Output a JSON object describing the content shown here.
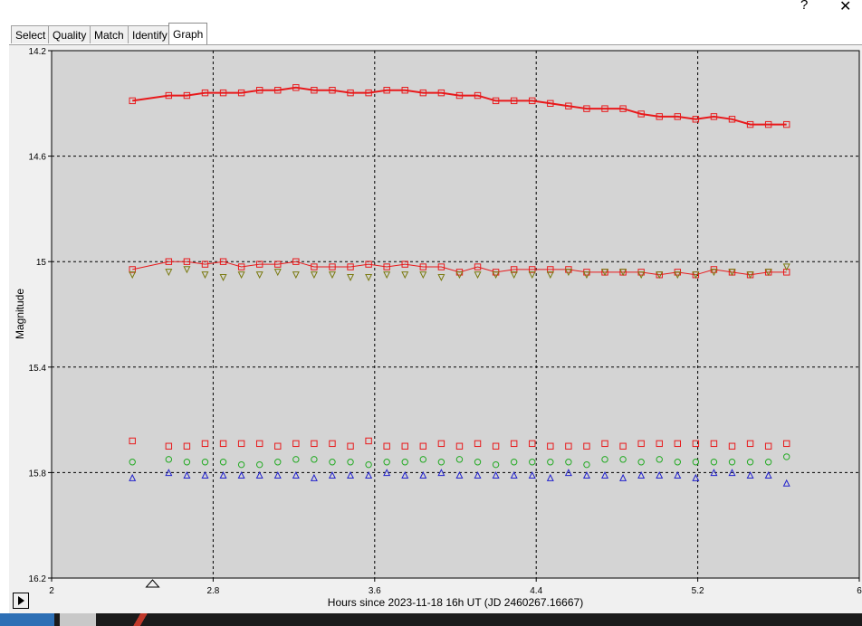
{
  "window": {
    "help_label": "?",
    "close_label": "✕"
  },
  "tabs": [
    {
      "label": "Select",
      "active": false
    },
    {
      "label": "Quality",
      "active": false
    },
    {
      "label": "Match",
      "active": false
    },
    {
      "label": "Identify",
      "active": false
    },
    {
      "label": "Graph",
      "active": true
    }
  ],
  "icons": {
    "play": "play-icon",
    "marker": "triangle-marker-icon"
  },
  "colors": {
    "plot_bg": "#d4d4d4",
    "red": "#e8191b",
    "green": "#22aa22",
    "blue": "#2222cc",
    "olive": "#7a7a10"
  },
  "chart_data": {
    "type": "scatter",
    "xlabel": "Hours since 2023-11-18 16h UT (JD 2460267.16667)",
    "ylabel": "Magnitude",
    "xlim": [
      2,
      6
    ],
    "ylim": [
      14.2,
      16.2
    ],
    "y_inverted": true,
    "x_ticks": [
      "2",
      "2.8",
      "3.6",
      "4.4",
      "5.2",
      "6"
    ],
    "y_ticks": [
      "14.2",
      "14.6",
      "15",
      "15.4",
      "15.8",
      "16.2"
    ],
    "grid": true,
    "x": [
      2.4,
      2.58,
      2.67,
      2.76,
      2.85,
      2.94,
      3.03,
      3.12,
      3.21,
      3.3,
      3.39,
      3.48,
      3.57,
      3.66,
      3.75,
      3.84,
      3.93,
      4.02,
      4.11,
      4.2,
      4.29,
      4.38,
      4.47,
      4.56,
      4.65,
      4.74,
      4.83,
      4.92,
      5.01,
      5.1,
      5.19,
      5.28,
      5.37,
      5.46,
      5.55,
      5.64
    ],
    "series": [
      {
        "marker": "square",
        "color": "#e8191b",
        "line": true,
        "line_width": 2,
        "values": [
          14.39,
          14.37,
          14.37,
          14.36,
          14.36,
          14.36,
          14.35,
          14.35,
          14.34,
          14.35,
          14.35,
          14.36,
          14.36,
          14.35,
          14.35,
          14.36,
          14.36,
          14.37,
          14.37,
          14.39,
          14.39,
          14.39,
          14.4,
          14.41,
          14.42,
          14.42,
          14.42,
          14.44,
          14.45,
          14.45,
          14.46,
          14.45,
          14.46,
          14.48,
          14.48,
          14.48
        ]
      },
      {
        "marker": "square",
        "color": "#e8191b",
        "line": true,
        "line_width": 1,
        "values": [
          15.03,
          15.0,
          15.0,
          15.01,
          15.0,
          15.02,
          15.01,
          15.01,
          15.0,
          15.02,
          15.02,
          15.02,
          15.01,
          15.02,
          15.01,
          15.02,
          15.02,
          15.04,
          15.02,
          15.04,
          15.03,
          15.03,
          15.03,
          15.03,
          15.04,
          15.04,
          15.04,
          15.04,
          15.05,
          15.04,
          15.05,
          15.03,
          15.04,
          15.05,
          15.04,
          15.04
        ]
      },
      {
        "marker": "triangle-down",
        "color": "#7a7a10",
        "line": false,
        "values": [
          15.05,
          15.04,
          15.03,
          15.05,
          15.06,
          15.05,
          15.05,
          15.04,
          15.05,
          15.05,
          15.05,
          15.06,
          15.06,
          15.05,
          15.05,
          15.05,
          15.06,
          15.05,
          15.05,
          15.05,
          15.05,
          15.05,
          15.05,
          15.04,
          15.05,
          15.04,
          15.04,
          15.05,
          15.05,
          15.05,
          15.05,
          15.04,
          15.04,
          15.05,
          15.04,
          15.02
        ]
      },
      {
        "marker": "square",
        "color": "#e8191b",
        "line": false,
        "values": [
          15.68,
          15.7,
          15.7,
          15.69,
          15.69,
          15.69,
          15.69,
          15.7,
          15.69,
          15.69,
          15.69,
          15.7,
          15.68,
          15.7,
          15.7,
          15.7,
          15.69,
          15.7,
          15.69,
          15.7,
          15.69,
          15.69,
          15.7,
          15.7,
          15.7,
          15.69,
          15.7,
          15.69,
          15.69,
          15.69,
          15.69,
          15.69,
          15.7,
          15.69,
          15.7,
          15.69
        ]
      },
      {
        "marker": "circle",
        "color": "#22aa22",
        "line": false,
        "values": [
          15.76,
          15.75,
          15.76,
          15.76,
          15.76,
          15.77,
          15.77,
          15.76,
          15.75,
          15.75,
          15.76,
          15.76,
          15.77,
          15.76,
          15.76,
          15.75,
          15.76,
          15.75,
          15.76,
          15.77,
          15.76,
          15.76,
          15.76,
          15.76,
          15.77,
          15.75,
          15.75,
          15.76,
          15.75,
          15.76,
          15.76,
          15.76,
          15.76,
          15.76,
          15.76,
          15.74
        ]
      },
      {
        "marker": "triangle-up",
        "color": "#2222cc",
        "line": false,
        "values": [
          15.82,
          15.8,
          15.81,
          15.81,
          15.81,
          15.81,
          15.81,
          15.81,
          15.81,
          15.82,
          15.81,
          15.81,
          15.81,
          15.8,
          15.81,
          15.81,
          15.8,
          15.81,
          15.81,
          15.81,
          15.81,
          15.81,
          15.82,
          15.8,
          15.81,
          15.81,
          15.82,
          15.81,
          15.81,
          15.81,
          15.82,
          15.8,
          15.8,
          15.81,
          15.81,
          15.84
        ]
      }
    ],
    "marker_x": 2.5
  }
}
